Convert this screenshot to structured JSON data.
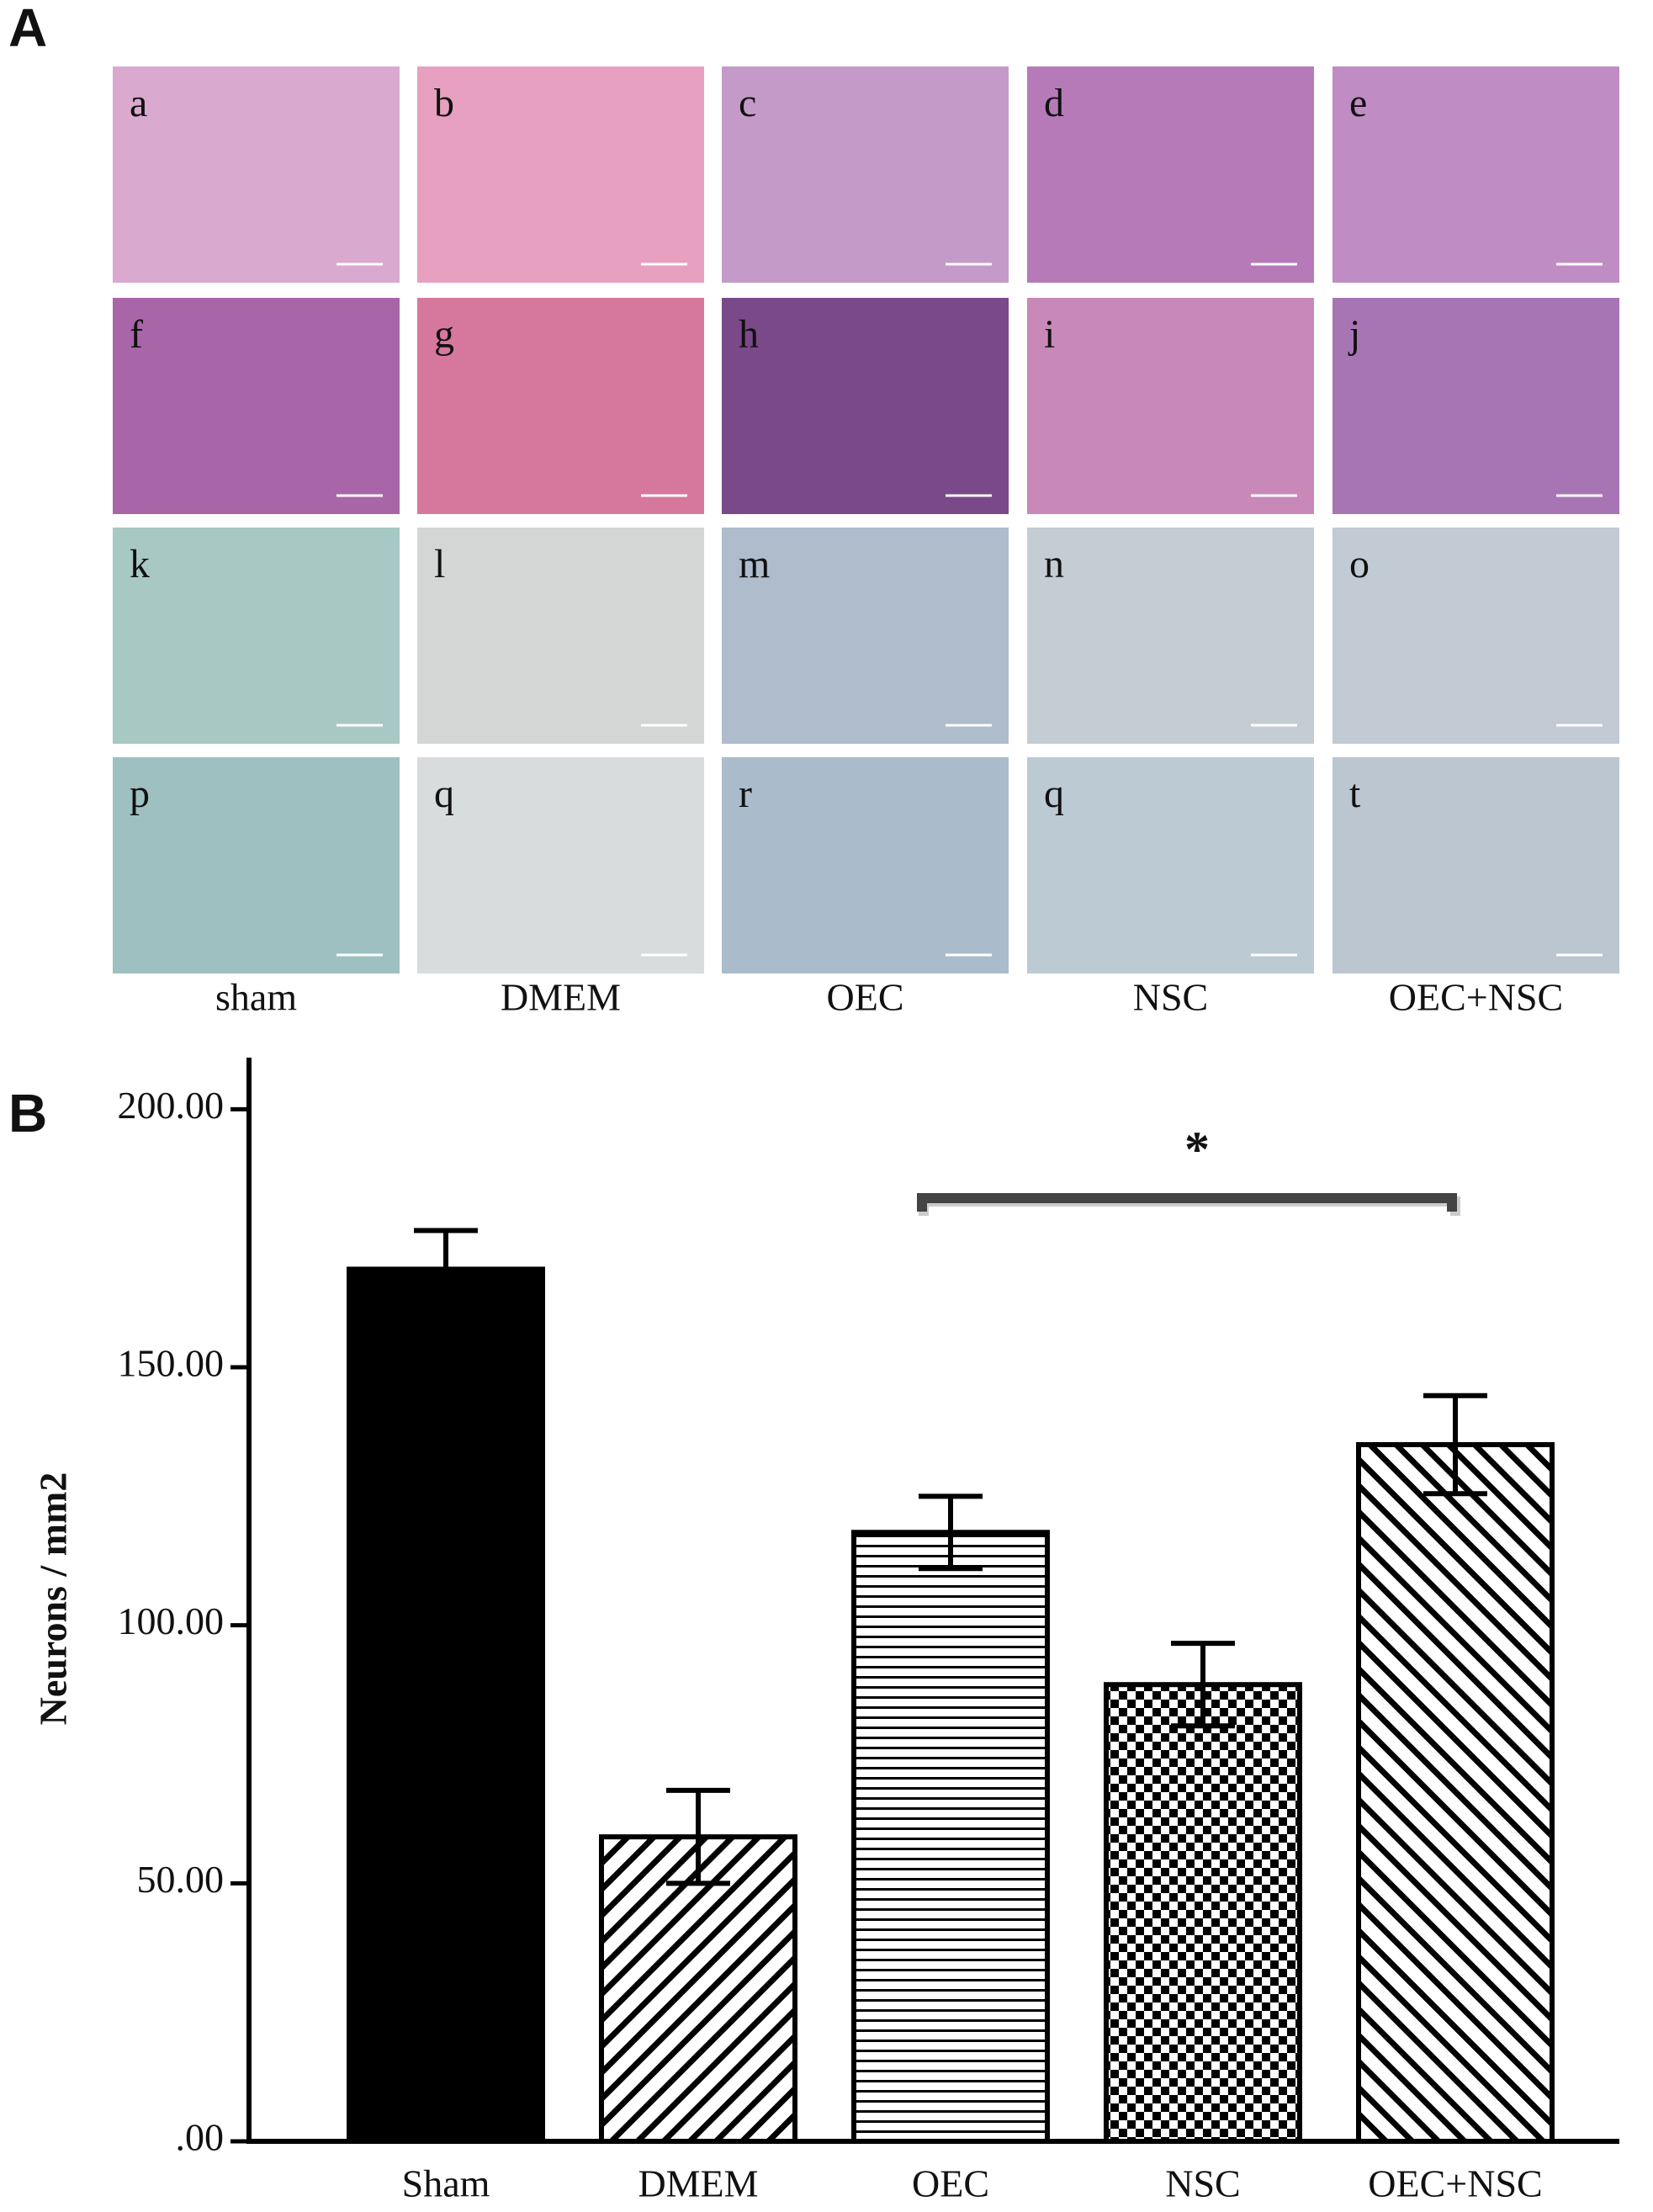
{
  "panel_a": {
    "label": "A",
    "tiles": [
      "a",
      "b",
      "c",
      "d",
      "e",
      "f",
      "g",
      "h",
      "i",
      "j",
      "k",
      "l",
      "m",
      "n",
      "o",
      "p",
      "q",
      "r",
      "q",
      "t"
    ],
    "columns": [
      "sham",
      "DMEM",
      "OEC",
      "NSC",
      "OEC+NSC"
    ]
  },
  "chart_data": {
    "type": "bar",
    "panel_label": "B",
    "ylabel": "Neurons / mm2",
    "categories": [
      "Sham",
      "DMEM",
      "OEC",
      "NSC",
      "OEC+NSC"
    ],
    "values": [
      169,
      59,
      118,
      88.5,
      135
    ],
    "errors": [
      7.5,
      9,
      7,
      8,
      9.5
    ],
    "ylim": [
      0,
      210
    ],
    "yticks": [
      {
        "value": 0,
        "label": ".00"
      },
      {
        "value": 50,
        "label": "50.00"
      },
      {
        "value": 100,
        "label": "100.00"
      },
      {
        "value": 150,
        "label": "150.00"
      },
      {
        "value": 200,
        "label": "200.00"
      }
    ],
    "annotation": "*"
  }
}
